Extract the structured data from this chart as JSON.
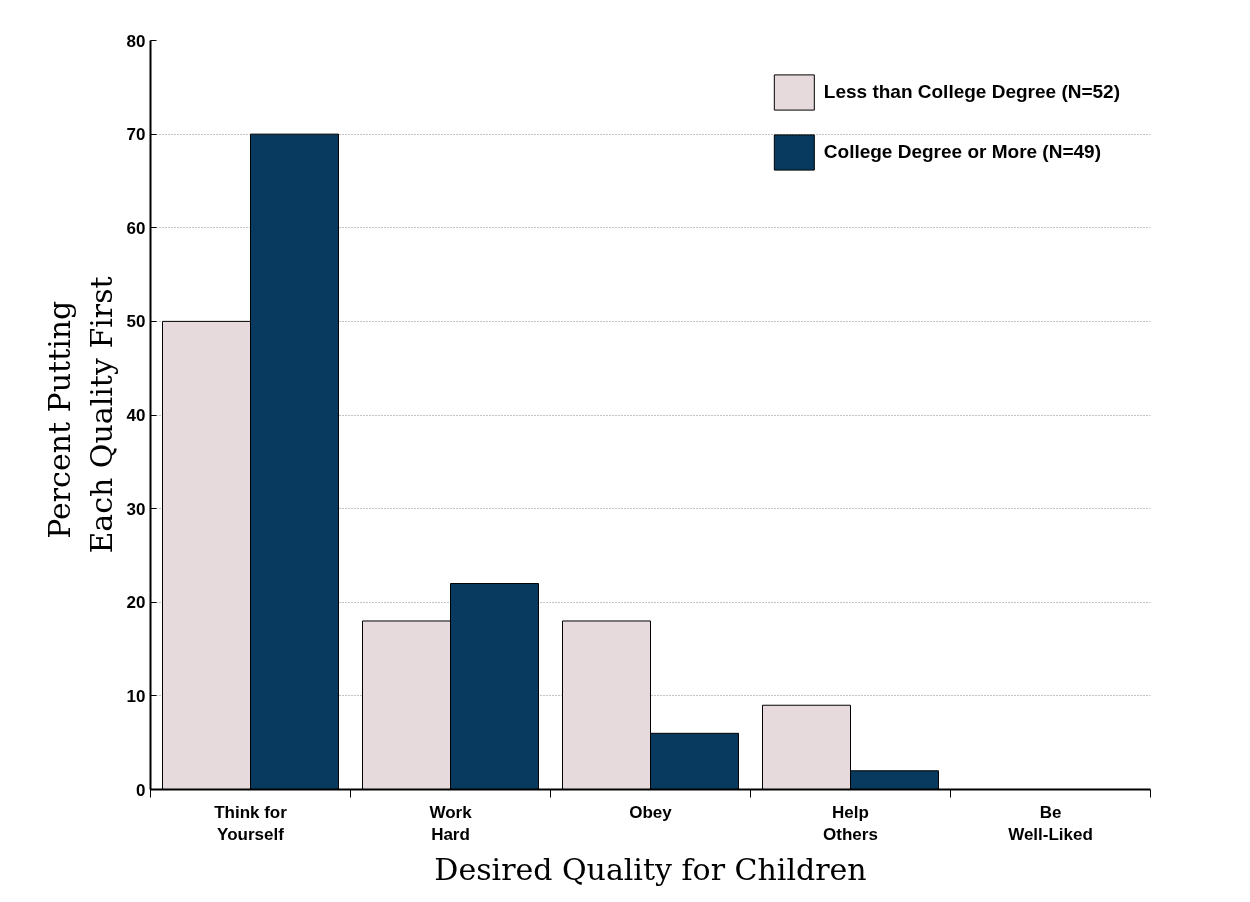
{
  "chart_data": {
    "type": "bar",
    "xlabel": "Desired Quality for Children",
    "ylabel": "Percent  Putting\nEach Quality First",
    "categories": [
      "Think for\nYourself",
      "Work\nHard",
      "Obey",
      "Help\nOthers",
      "Be\nWell-Liked"
    ],
    "series": [
      {
        "name": "Less than College Degree (N=52)",
        "color": "#e6dadd",
        "values": [
          50,
          18,
          18,
          9,
          0
        ]
      },
      {
        "name": "College Degree or More (N=49)",
        "color": "#073a5e",
        "values": [
          70,
          22,
          6,
          2,
          0
        ]
      }
    ],
    "ylim": [
      0,
      80
    ],
    "yticks": [
      0,
      10,
      20,
      30,
      40,
      50,
      60,
      70,
      80
    ],
    "grid": "y",
    "legend": "top right"
  }
}
